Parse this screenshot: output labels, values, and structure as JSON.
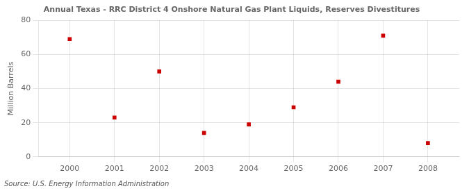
{
  "chart_data": {
    "type": "scatter",
    "title": "Annual Texas - RRC District 4 Onshore Natural Gas Plant Liquids, Reserves Divestitures",
    "ylabel": "Million Barrels",
    "annotations": [
      "Source: U.S. Energy Information Administration"
    ],
    "x": [
      2000,
      2001,
      2002,
      2003,
      2004,
      2005,
      2006,
      2007,
      2008
    ],
    "values": [
      69,
      23,
      50,
      14,
      19,
      29,
      44,
      71,
      8
    ],
    "color": "#cc0000",
    "marker": "square",
    "xlim": [
      1999.3,
      2008.7
    ],
    "xticks": [
      2000,
      2001,
      2002,
      2003,
      2004,
      2005,
      2006,
      2007,
      2008
    ],
    "ylim": [
      0,
      80
    ],
    "yticks": [
      0,
      20,
      40,
      60,
      80
    ],
    "grid": true
  }
}
